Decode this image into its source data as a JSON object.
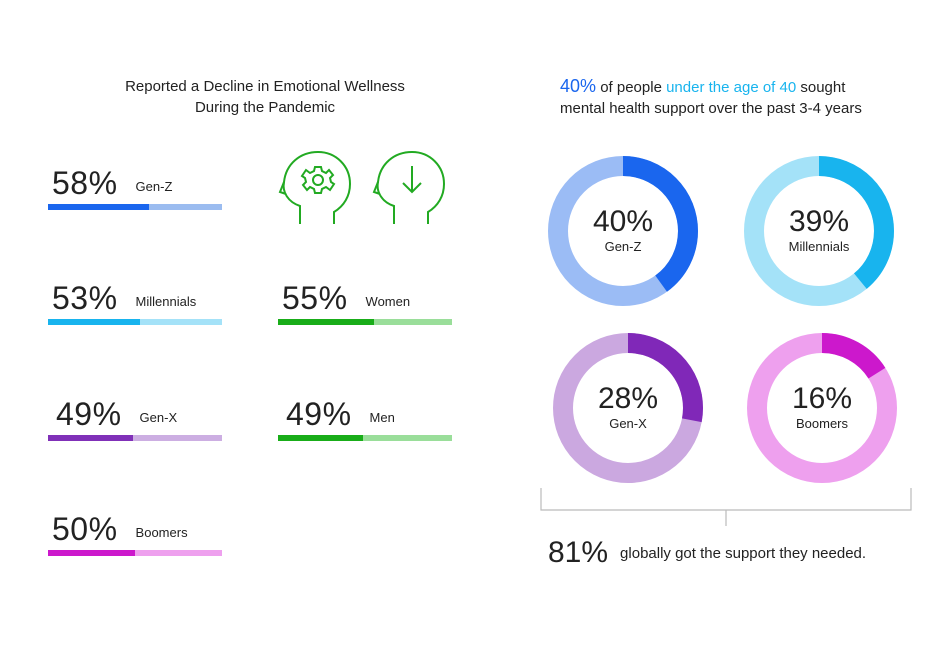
{
  "left_title": {
    "line1": "Reported a Decline in Emotional Wellness",
    "line2": "During the Pandemic"
  },
  "right_title": {
    "pct": "40%",
    "mid1": " of people ",
    "highlight": "under the age of 40",
    "mid2": " sought",
    "line2": "mental health support over the past 3-4 years"
  },
  "colors": {
    "title_blue": "#1a66ee",
    "title_cyan": "#18b4ee",
    "icon_green": "#22aa22"
  },
  "icons": [
    "head-gear-icon",
    "head-down-arrow-icon"
  ],
  "summary": {
    "pct": "81%",
    "text": "globally got the support they needed."
  },
  "chart_data": [
    {
      "type": "bar",
      "title": "Reported a Decline in Emotional Wellness During the Pandemic",
      "categories": [
        "Gen-Z",
        "Millennials",
        "Gen-X",
        "Boomers",
        "Women",
        "Men"
      ],
      "values": [
        58,
        53,
        49,
        50,
        55,
        49
      ],
      "labels": [
        "58%",
        "53%",
        "49%",
        "50%",
        "55%",
        "49%"
      ],
      "colors": [
        {
          "fill": "#1a66ee",
          "rest": "#9bbcf0"
        },
        {
          "fill": "#18b4ee",
          "rest": "#a4e2f8"
        },
        {
          "fill": "#8030b8",
          "rest": "#ccaee2"
        },
        {
          "fill": "#cc18cc",
          "rest": "#eea0ee"
        },
        {
          "fill": "#19ad19",
          "rest": "#9ade9a"
        },
        {
          "fill": "#19ad19",
          "rest": "#9ade9a"
        }
      ],
      "ylim": [
        0,
        100
      ]
    },
    {
      "type": "pie",
      "title": "40% of people under the age of 40 sought mental health support over the past 3-4 years",
      "categories": [
        "Gen-Z",
        "Millennials",
        "Gen-X",
        "Boomers"
      ],
      "values": [
        40,
        39,
        28,
        16
      ],
      "labels": [
        "40%",
        "39%",
        "28%",
        "16%"
      ],
      "colors": [
        {
          "fill": "#1a66ee",
          "rest": "#9bbcf5"
        },
        {
          "fill": "#18b4ee",
          "rest": "#a4e2f8"
        },
        {
          "fill": "#8028b8",
          "rest": "#cba8e0"
        },
        {
          "fill": "#cc18cc",
          "rest": "#eea0ee"
        }
      ]
    }
  ]
}
